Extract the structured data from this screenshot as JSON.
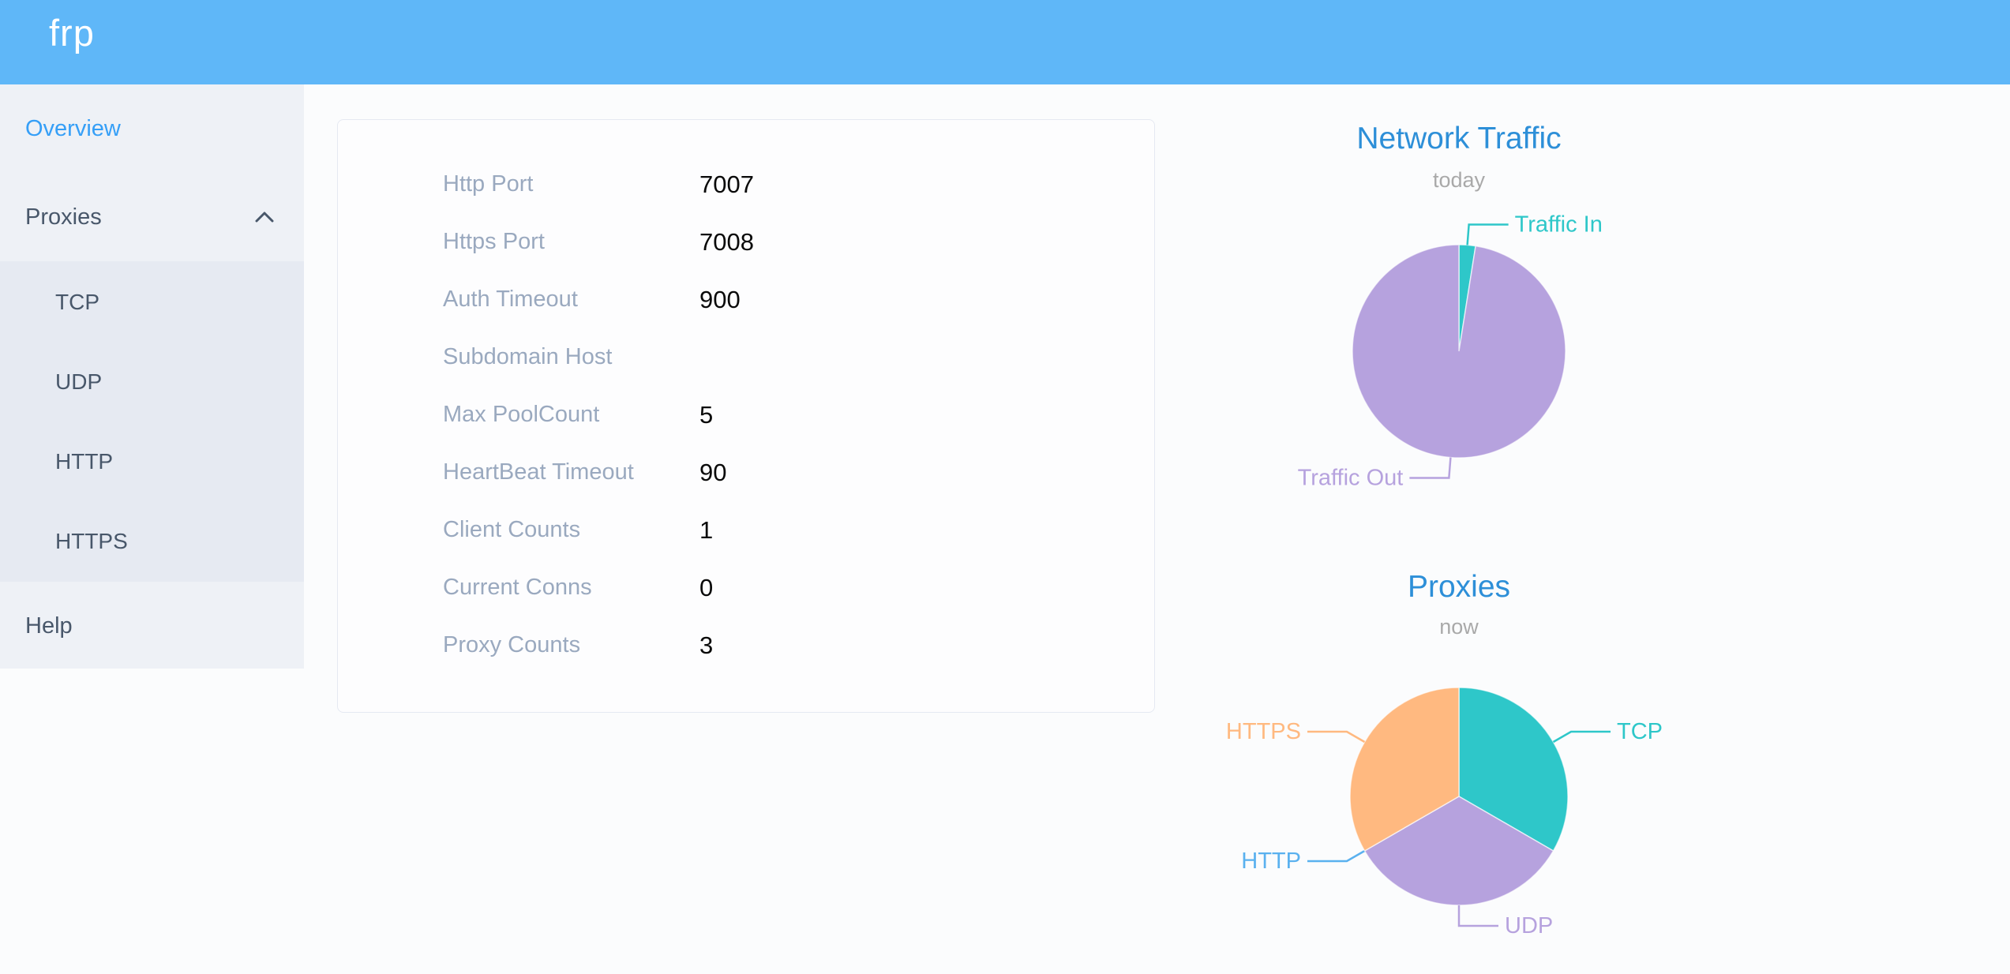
{
  "header": {
    "logo": "frp",
    "bg_color": "#5fb7f8"
  },
  "sidebar": {
    "active_color": "#359ff7",
    "items": [
      {
        "label": "Overview",
        "active": true
      },
      {
        "label": "Proxies",
        "expanded": true,
        "children": [
          "TCP",
          "UDP",
          "HTTP",
          "HTTPS"
        ]
      },
      {
        "label": "Help"
      }
    ]
  },
  "config_card": {
    "rows": [
      {
        "label": "Http Port",
        "value": "7007"
      },
      {
        "label": "Https Port",
        "value": "7008"
      },
      {
        "label": "Auth Timeout",
        "value": "900"
      },
      {
        "label": "Subdomain Host",
        "value": ""
      },
      {
        "label": "Max PoolCount",
        "value": "5"
      },
      {
        "label": "HeartBeat Timeout",
        "value": "90"
      },
      {
        "label": "Client Counts",
        "value": "1"
      },
      {
        "label": "Current Conns",
        "value": "0"
      },
      {
        "label": "Proxy Counts",
        "value": "3"
      }
    ]
  },
  "chart_data": [
    {
      "type": "pie",
      "title": "Network Traffic",
      "subtitle": "today",
      "title_color": "#2d8fd8",
      "legend_position": "none",
      "values_unit": "percent (estimated from slice angles)",
      "series": [
        {
          "name": "Traffic In",
          "value": 2.5,
          "color": "#2ec7c9"
        },
        {
          "name": "Traffic Out",
          "value": 97.5,
          "color": "#b6a2de"
        }
      ]
    },
    {
      "type": "pie",
      "title": "Proxies",
      "subtitle": "now",
      "title_color": "#2d8fd8",
      "legend_position": "none",
      "values_unit": "proxy counts",
      "series": [
        {
          "name": "TCP",
          "value": 1,
          "color": "#2ec7c9"
        },
        {
          "name": "UDP",
          "value": 1,
          "color": "#b6a2de"
        },
        {
          "name": "HTTP",
          "value": 0,
          "color": "#5ab1ef"
        },
        {
          "name": "HTTPS",
          "value": 1,
          "color": "#ffb980"
        }
      ]
    }
  ]
}
